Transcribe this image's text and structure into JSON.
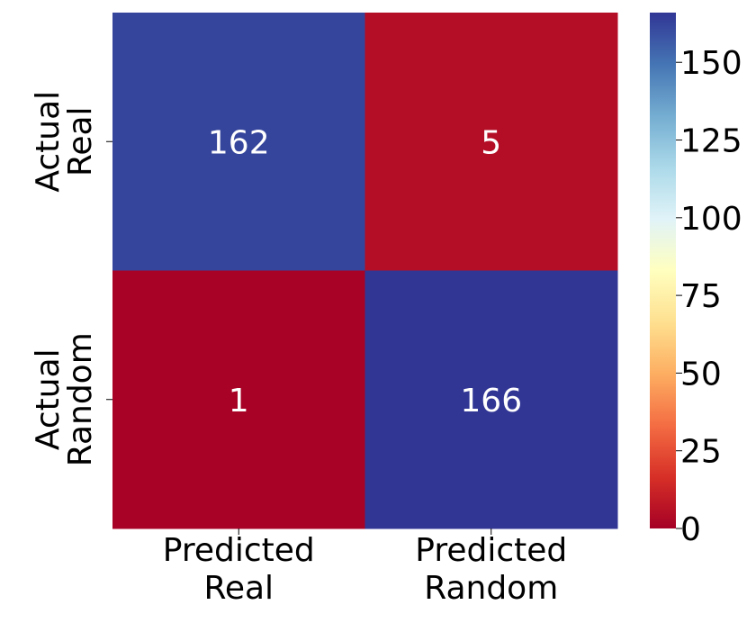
{
  "chart_data": {
    "type": "heatmap",
    "rows": [
      [
        "Actual",
        "Real"
      ],
      [
        "Actual",
        "Random"
      ]
    ],
    "columns": [
      [
        "Predicted",
        "Real"
      ],
      [
        "Predicted",
        "Random"
      ]
    ],
    "values": [
      [
        162,
        5
      ],
      [
        1,
        166
      ]
    ],
    "colormap": "RdYlBu",
    "clim": [
      0,
      166
    ],
    "cticks": [
      0,
      25,
      50,
      75,
      100,
      125,
      150
    ]
  }
}
